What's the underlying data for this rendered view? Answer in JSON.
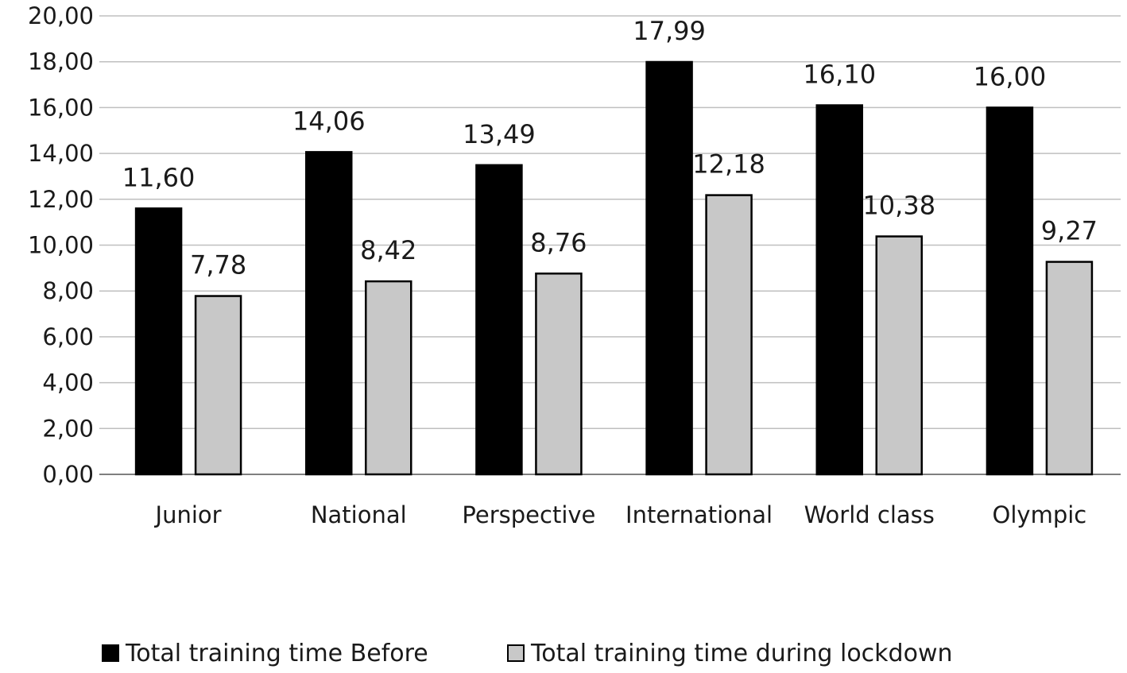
{
  "chart_data": {
    "type": "bar",
    "categories": [
      "Junior",
      "National",
      "Perspective",
      "International",
      "World class",
      "Olympic"
    ],
    "series": [
      {
        "name": "Total training time Before",
        "color": "#000000",
        "values": [
          11.6,
          14.06,
          13.49,
          17.99,
          16.1,
          16.0
        ],
        "labels": [
          "11,60",
          "14,06",
          "13,49",
          "17,99",
          "16,10",
          "16,00"
        ]
      },
      {
        "name": "Total training time during lockdown",
        "color": "#c8c8c8",
        "values": [
          7.78,
          8.42,
          8.76,
          12.18,
          10.38,
          9.27
        ],
        "labels": [
          "7,78",
          "8,42",
          "8,76",
          "12,18",
          "10,38",
          "9,27"
        ]
      }
    ],
    "ylim": [
      0,
      20
    ],
    "yticks": [
      0,
      2,
      4,
      6,
      8,
      10,
      12,
      14,
      16,
      18,
      20
    ],
    "ytick_labels": [
      "0,00",
      "2,00",
      "4,00",
      "6,00",
      "8,00",
      "10,00",
      "12,00",
      "14,00",
      "16,00",
      "18,00",
      "20,00"
    ],
    "grid": true,
    "legend_position": "bottom",
    "xlabel": "",
    "ylabel": "",
    "title": ""
  },
  "legend": {
    "before_label": "Total training time Before",
    "during_label": "Total training time during lockdown"
  }
}
